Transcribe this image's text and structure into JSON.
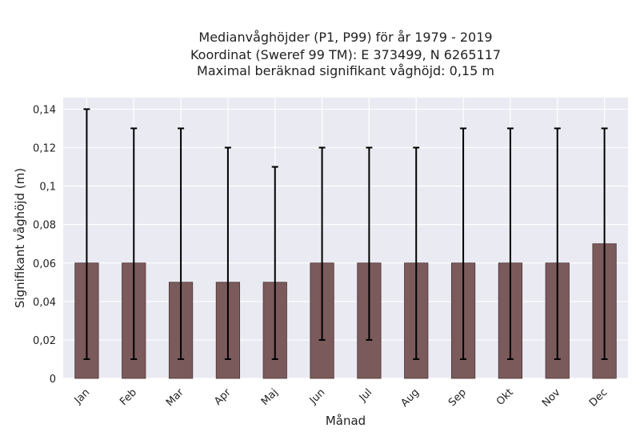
{
  "chart_data": {
    "type": "bar",
    "title_lines": [
      "Medianvåghöjder (P1, P99) för år 1979 - 2019",
      "Koordinat (Sweref 99 TM): E 373499, N 6265117",
      "Maximal beräknad signifikant våghöjd: 0,15 m"
    ],
    "xlabel": "Månad",
    "ylabel": "Signifikant våghöjd (m)",
    "categories": [
      "Jan",
      "Feb",
      "Mar",
      "Apr",
      "Maj",
      "Jun",
      "Jul",
      "Aug",
      "Sep",
      "Okt",
      "Nov",
      "Dec"
    ],
    "values": [
      0.06,
      0.06,
      0.05,
      0.05,
      0.05,
      0.06,
      0.06,
      0.06,
      0.06,
      0.06,
      0.06,
      0.07
    ],
    "p1": [
      0.01,
      0.01,
      0.01,
      0.01,
      0.01,
      0.02,
      0.02,
      0.01,
      0.01,
      0.01,
      0.01,
      0.01
    ],
    "p99": [
      0.14,
      0.13,
      0.13,
      0.12,
      0.11,
      0.12,
      0.12,
      0.12,
      0.13,
      0.13,
      0.13,
      0.13
    ],
    "ylim": [
      0,
      0.146
    ],
    "yticks": [
      0,
      0.02,
      0.04,
      0.06,
      0.08,
      0.1,
      0.12,
      0.14
    ],
    "ytick_labels": [
      "0",
      "0,02",
      "0,04",
      "0,06",
      "0,08",
      "0,1",
      "0,12",
      "0,14"
    ],
    "grid": true,
    "colors": {
      "bar": "#7b5a5c",
      "bar_edge": "#4a3536",
      "error": "#000000",
      "plot_bg": "#eaeaf2",
      "grid": "#ffffff"
    }
  }
}
